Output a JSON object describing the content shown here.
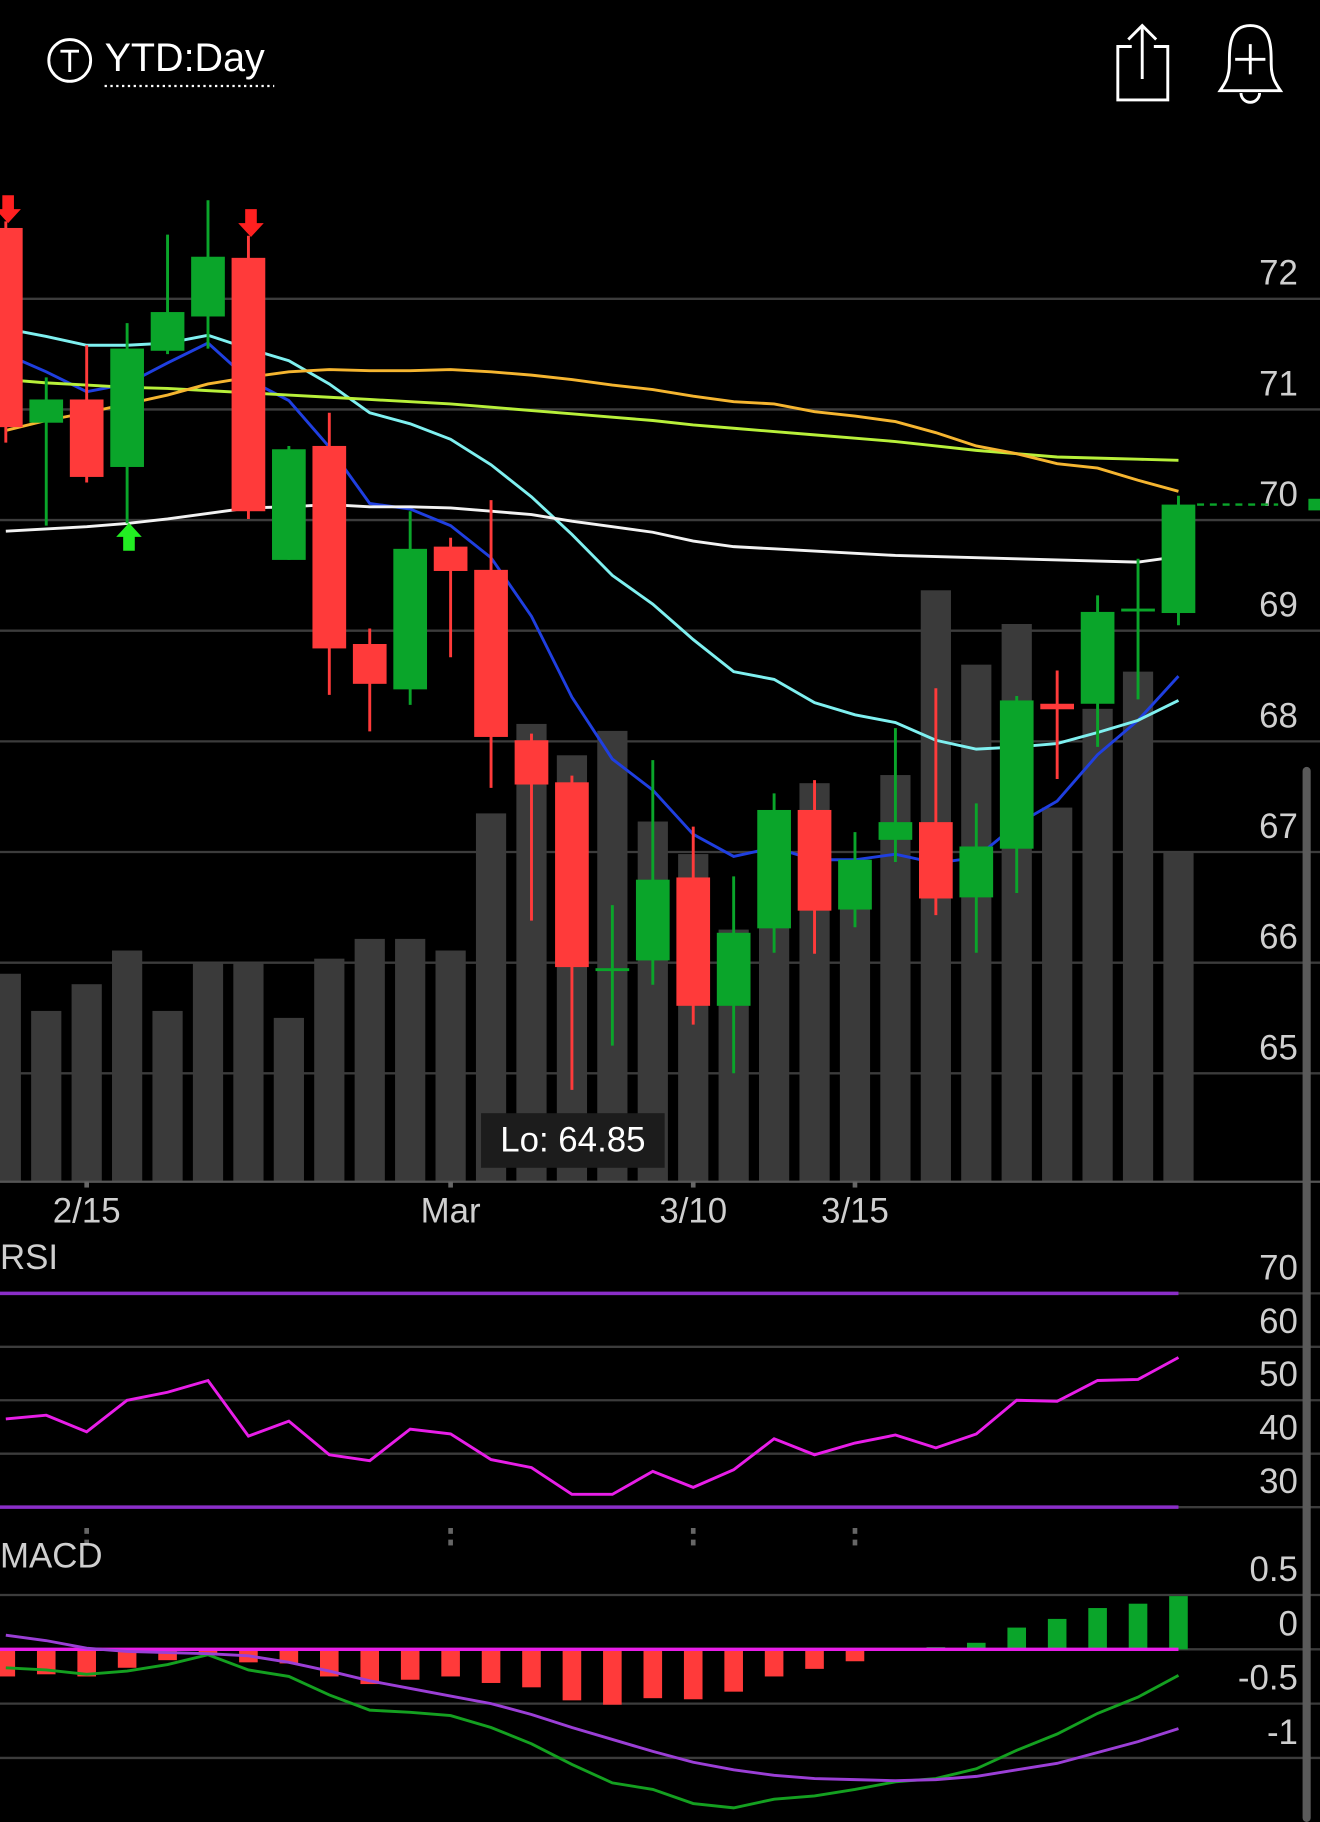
{
  "header": {
    "title": "YTD:Day"
  },
  "chart_data": [
    {
      "type": "candlestick",
      "categories": [
        null,
        null,
        "2/15",
        null,
        null,
        null,
        null,
        null,
        null,
        null,
        null,
        "Mar",
        null,
        null,
        null,
        null,
        null,
        "3/10",
        null,
        null,
        null,
        "3/15",
        null,
        null,
        null,
        null,
        null,
        null,
        null,
        null
      ],
      "open": [
        72.64,
        70.88,
        71.09,
        70.48,
        71.53,
        71.84,
        72.37,
        69.64,
        70.67,
        68.88,
        68.47,
        69.76,
        69.55,
        68.01,
        67.63,
        65.93,
        66.02,
        66.77,
        65.61,
        66.31,
        67.38,
        66.48,
        67.11,
        67.27,
        66.59,
        67.03,
        68.34,
        68.34,
        69.18,
        69.16
      ],
      "high": [
        72.7,
        71.29,
        71.58,
        71.78,
        72.58,
        72.89,
        72.57,
        70.67,
        70.97,
        69.02,
        70.08,
        69.84,
        70.18,
        68.07,
        67.69,
        66.52,
        67.83,
        67.23,
        66.78,
        67.53,
        67.65,
        67.18,
        68.12,
        68.48,
        67.44,
        68.41,
        68.64,
        69.32,
        69.65,
        70.22
      ],
      "low": [
        70.7,
        69.95,
        70.34,
        69.97,
        71.5,
        71.55,
        70.01,
        69.64,
        68.42,
        68.09,
        68.33,
        68.76,
        67.58,
        66.38,
        64.85,
        65.25,
        65.8,
        65.44,
        65.0,
        66.09,
        66.08,
        66.32,
        66.91,
        66.43,
        66.09,
        66.63,
        67.66,
        67.95,
        68.38,
        69.05
      ],
      "close": [
        70.84,
        71.09,
        70.39,
        71.55,
        71.88,
        72.38,
        70.08,
        70.64,
        68.84,
        68.52,
        69.74,
        69.54,
        68.04,
        67.61,
        65.96,
        65.95,
        66.75,
        65.61,
        66.27,
        67.38,
        66.47,
        66.93,
        67.27,
        66.58,
        67.05,
        68.37,
        68.29,
        69.17,
        69.2,
        70.14
      ],
      "volume": [
        179,
        147,
        170,
        199,
        147,
        188,
        188,
        141,
        192,
        209,
        209,
        199,
        317,
        394,
        367,
        388,
        310,
        282,
        217,
        317,
        343,
        277,
        350,
        509,
        445,
        480,
        322,
        407,
        439,
        283
      ],
      "volume_lim": [
        0,
        877
      ],
      "volume_color": "#3a3a3a",
      "up_color": "#0aa52a",
      "down_color": "#ff3a3a",
      "series": [
        {
          "color": "#1f3fe0",
          "values": [
            71.5,
            71.34,
            71.16,
            71.23,
            71.42,
            71.6,
            71.27,
            71.08,
            70.66,
            70.15,
            70.1,
            69.95,
            69.66,
            69.13,
            68.4,
            67.84,
            67.56,
            67.16,
            66.96,
            67.04,
            66.93,
            66.93,
            66.98,
            66.9,
            66.95,
            67.25,
            67.46,
            67.88,
            68.19,
            68.59
          ]
        },
        {
          "color": "#7ff0f0",
          "values": [
            71.73,
            71.66,
            71.58,
            71.58,
            71.6,
            71.67,
            71.55,
            71.44,
            71.23,
            70.97,
            70.87,
            70.73,
            70.5,
            70.21,
            69.87,
            69.5,
            69.24,
            68.92,
            68.63,
            68.56,
            68.35,
            68.24,
            68.17,
            68.01,
            67.93,
            67.95,
            67.98,
            68.08,
            68.19,
            68.37
          ]
        },
        {
          "color": "#f2f2f2",
          "values": [
            69.9,
            69.92,
            69.94,
            69.97,
            70.01,
            70.06,
            70.11,
            70.12,
            70.14,
            70.12,
            70.12,
            70.11,
            70.08,
            70.05,
            69.99,
            69.94,
            69.89,
            69.81,
            69.76,
            69.74,
            69.72,
            69.7,
            69.68,
            69.67,
            69.66,
            69.65,
            69.64,
            69.63,
            69.62,
            69.67
          ]
        },
        {
          "color": "#b8f03a",
          "values": [
            71.27,
            71.24,
            71.22,
            71.2,
            71.19,
            71.17,
            71.15,
            71.13,
            71.11,
            71.09,
            71.07,
            71.05,
            71.02,
            70.99,
            70.96,
            70.93,
            70.9,
            70.86,
            70.83,
            70.8,
            70.77,
            70.74,
            70.71,
            70.67,
            70.63,
            70.6,
            70.57,
            70.56,
            70.55,
            70.54
          ]
        },
        {
          "color": "#f5b530",
          "values": [
            70.81,
            70.9,
            70.97,
            71.05,
            71.13,
            71.23,
            71.29,
            71.34,
            71.36,
            71.35,
            71.35,
            71.36,
            71.34,
            71.31,
            71.27,
            71.22,
            71.18,
            71.12,
            71.07,
            71.05,
            70.98,
            70.94,
            70.89,
            70.79,
            70.67,
            70.6,
            70.51,
            70.47,
            70.36,
            70.26
          ]
        }
      ],
      "annotations": [
        "Lo: 64.85"
      ],
      "ylim": [
        64.02,
        73.23
      ],
      "yticks": [
        65,
        66,
        67,
        68,
        69,
        70,
        71,
        72
      ],
      "grid": true
    },
    {
      "type": "line",
      "title": "RSI",
      "series": [
        {
          "color": "#e81ee8",
          "values": [
            46.5,
            47.2,
            44.1,
            50.0,
            51.5,
            53.7,
            43.3,
            46.1,
            39.8,
            38.7,
            44.6,
            43.7,
            38.9,
            37.4,
            32.4,
            32.4,
            36.7,
            33.7,
            37.0,
            42.8,
            39.8,
            42.0,
            43.5,
            41.1,
            43.7,
            50.0,
            49.8,
            53.7,
            53.9,
            58.0
          ]
        }
      ],
      "bands": [
        30,
        70
      ],
      "band_color": "#8a2ec8",
      "ylim": [
        26.1,
        79.8
      ],
      "yticks": [
        30,
        40,
        50,
        60,
        70
      ],
      "grid": true
    },
    {
      "type": "macd",
      "title": "MACD",
      "histogram": [
        -0.25,
        -0.23,
        -0.25,
        -0.17,
        -0.1,
        -0.04,
        -0.12,
        -0.13,
        -0.25,
        -0.32,
        -0.28,
        -0.25,
        -0.31,
        -0.35,
        -0.47,
        -0.51,
        -0.45,
        -0.46,
        -0.39,
        -0.25,
        -0.18,
        -0.11,
        -0.01,
        0.02,
        0.06,
        0.2,
        0.28,
        0.38,
        0.42,
        0.49
      ],
      "up_color": "#0aa52a",
      "down_color": "#ff3a3a",
      "zero_color": "#e81ee8",
      "series": [
        {
          "color": "#14a020",
          "values": [
            -0.17,
            -0.19,
            -0.23,
            -0.2,
            -0.14,
            -0.05,
            -0.19,
            -0.25,
            -0.42,
            -0.56,
            -0.58,
            -0.61,
            -0.72,
            -0.87,
            -1.06,
            -1.23,
            -1.29,
            -1.42,
            -1.46,
            -1.38,
            -1.35,
            -1.29,
            -1.22,
            -1.19,
            -1.1,
            -0.93,
            -0.78,
            -0.59,
            -0.44,
            -0.24
          ]
        },
        {
          "color": "#9b3fd6",
          "values": [
            0.13,
            0.08,
            0.01,
            -0.02,
            -0.03,
            -0.04,
            -0.06,
            -0.12,
            -0.2,
            -0.29,
            -0.36,
            -0.43,
            -0.5,
            -0.6,
            -0.72,
            -0.83,
            -0.94,
            -1.04,
            -1.11,
            -1.16,
            -1.19,
            -1.2,
            -1.21,
            -1.2,
            -1.17,
            -1.11,
            -1.05,
            -0.95,
            -0.85,
            -0.73
          ]
        }
      ],
      "ylim": [
        -1.59,
        1.01
      ],
      "yticks": [
        -1,
        -0.5,
        0,
        0.5
      ],
      "grid": true
    }
  ]
}
